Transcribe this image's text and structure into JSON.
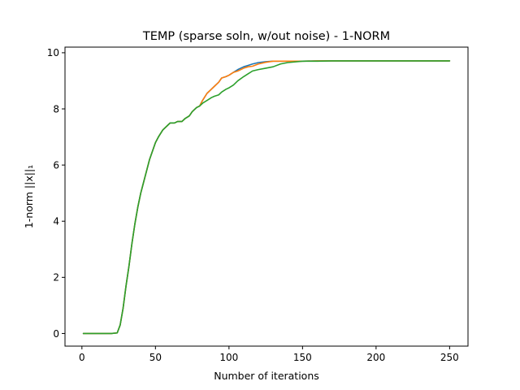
{
  "chart_data": {
    "type": "line",
    "title": "TEMP (sparse soln, w/out noise) - 1-NORM",
    "xlabel": "Number of iterations",
    "ylabel": "1-norm ||x||₁",
    "xlim": [
      -11.5,
      262.5
    ],
    "ylim": [
      -0.45,
      10.2
    ],
    "xticks": [
      0,
      50,
      100,
      150,
      200,
      250
    ],
    "yticks": [
      0,
      2,
      4,
      6,
      8,
      10
    ],
    "grid": false,
    "legend": "none",
    "series": [
      {
        "color": "#1f77b4",
        "x": [
          1,
          10,
          20,
          24,
          26,
          28,
          30,
          32,
          34,
          36,
          38,
          40,
          42,
          44,
          46,
          48,
          50,
          52,
          55,
          58,
          60,
          63,
          65,
          68,
          70,
          73,
          75,
          78,
          80,
          82,
          85,
          88,
          90,
          93,
          95,
          98,
          100,
          103,
          106,
          110,
          113,
          116,
          120,
          125,
          130,
          135,
          140,
          150,
          160,
          170,
          180,
          200,
          220,
          240,
          250
        ],
        "y": [
          0,
          0,
          0,
          0.02,
          0.3,
          0.9,
          1.7,
          2.4,
          3.2,
          3.9,
          4.5,
          5.0,
          5.4,
          5.8,
          6.2,
          6.5,
          6.8,
          7.0,
          7.25,
          7.4,
          7.5,
          7.5,
          7.55,
          7.55,
          7.65,
          7.75,
          7.9,
          8.05,
          8.1,
          8.3,
          8.55,
          8.7,
          8.8,
          8.95,
          9.1,
          9.15,
          9.2,
          9.3,
          9.4,
          9.5,
          9.55,
          9.6,
          9.65,
          9.68,
          9.7,
          9.7,
          9.7,
          9.7,
          9.71,
          9.71,
          9.71,
          9.71,
          9.71,
          9.71,
          9.71
        ]
      },
      {
        "color": "#ff7f0e",
        "x": [
          1,
          10,
          20,
          24,
          26,
          28,
          30,
          32,
          34,
          36,
          38,
          40,
          42,
          44,
          46,
          48,
          50,
          52,
          55,
          58,
          60,
          63,
          65,
          68,
          70,
          73,
          75,
          78,
          80,
          82,
          85,
          88,
          90,
          93,
          95,
          98,
          100,
          103,
          106,
          110,
          113,
          116,
          120,
          125,
          130,
          135,
          140,
          150,
          160,
          170,
          180,
          200,
          220,
          240,
          250
        ],
        "y": [
          0,
          0,
          0,
          0.02,
          0.3,
          0.9,
          1.7,
          2.4,
          3.2,
          3.9,
          4.5,
          5.0,
          5.4,
          5.8,
          6.2,
          6.5,
          6.8,
          7.0,
          7.25,
          7.4,
          7.5,
          7.5,
          7.55,
          7.55,
          7.65,
          7.75,
          7.9,
          8.05,
          8.1,
          8.3,
          8.55,
          8.7,
          8.8,
          8.95,
          9.1,
          9.15,
          9.2,
          9.3,
          9.35,
          9.45,
          9.5,
          9.52,
          9.6,
          9.66,
          9.7,
          9.7,
          9.7,
          9.7,
          9.71,
          9.71,
          9.71,
          9.71,
          9.71,
          9.71,
          9.71
        ]
      },
      {
        "color": "#2ca02c",
        "x": [
          1,
          10,
          20,
          24,
          26,
          28,
          30,
          32,
          34,
          36,
          38,
          40,
          42,
          44,
          46,
          48,
          50,
          52,
          55,
          58,
          60,
          63,
          65,
          68,
          70,
          73,
          75,
          78,
          80,
          82,
          85,
          88,
          90,
          93,
          95,
          98,
          100,
          103,
          106,
          110,
          113,
          116,
          120,
          125,
          130,
          135,
          140,
          150,
          160,
          170,
          180,
          200,
          220,
          240,
          250
        ],
        "y": [
          0,
          0,
          0,
          0.02,
          0.3,
          0.9,
          1.7,
          2.4,
          3.2,
          3.9,
          4.5,
          5.0,
          5.4,
          5.8,
          6.2,
          6.5,
          6.8,
          7.0,
          7.25,
          7.4,
          7.5,
          7.5,
          7.55,
          7.55,
          7.65,
          7.75,
          7.9,
          8.05,
          8.1,
          8.2,
          8.3,
          8.4,
          8.45,
          8.5,
          8.6,
          8.7,
          8.75,
          8.85,
          9.0,
          9.15,
          9.25,
          9.35,
          9.4,
          9.45,
          9.5,
          9.6,
          9.65,
          9.7,
          9.7,
          9.71,
          9.71,
          9.71,
          9.71,
          9.71,
          9.71
        ]
      }
    ]
  }
}
